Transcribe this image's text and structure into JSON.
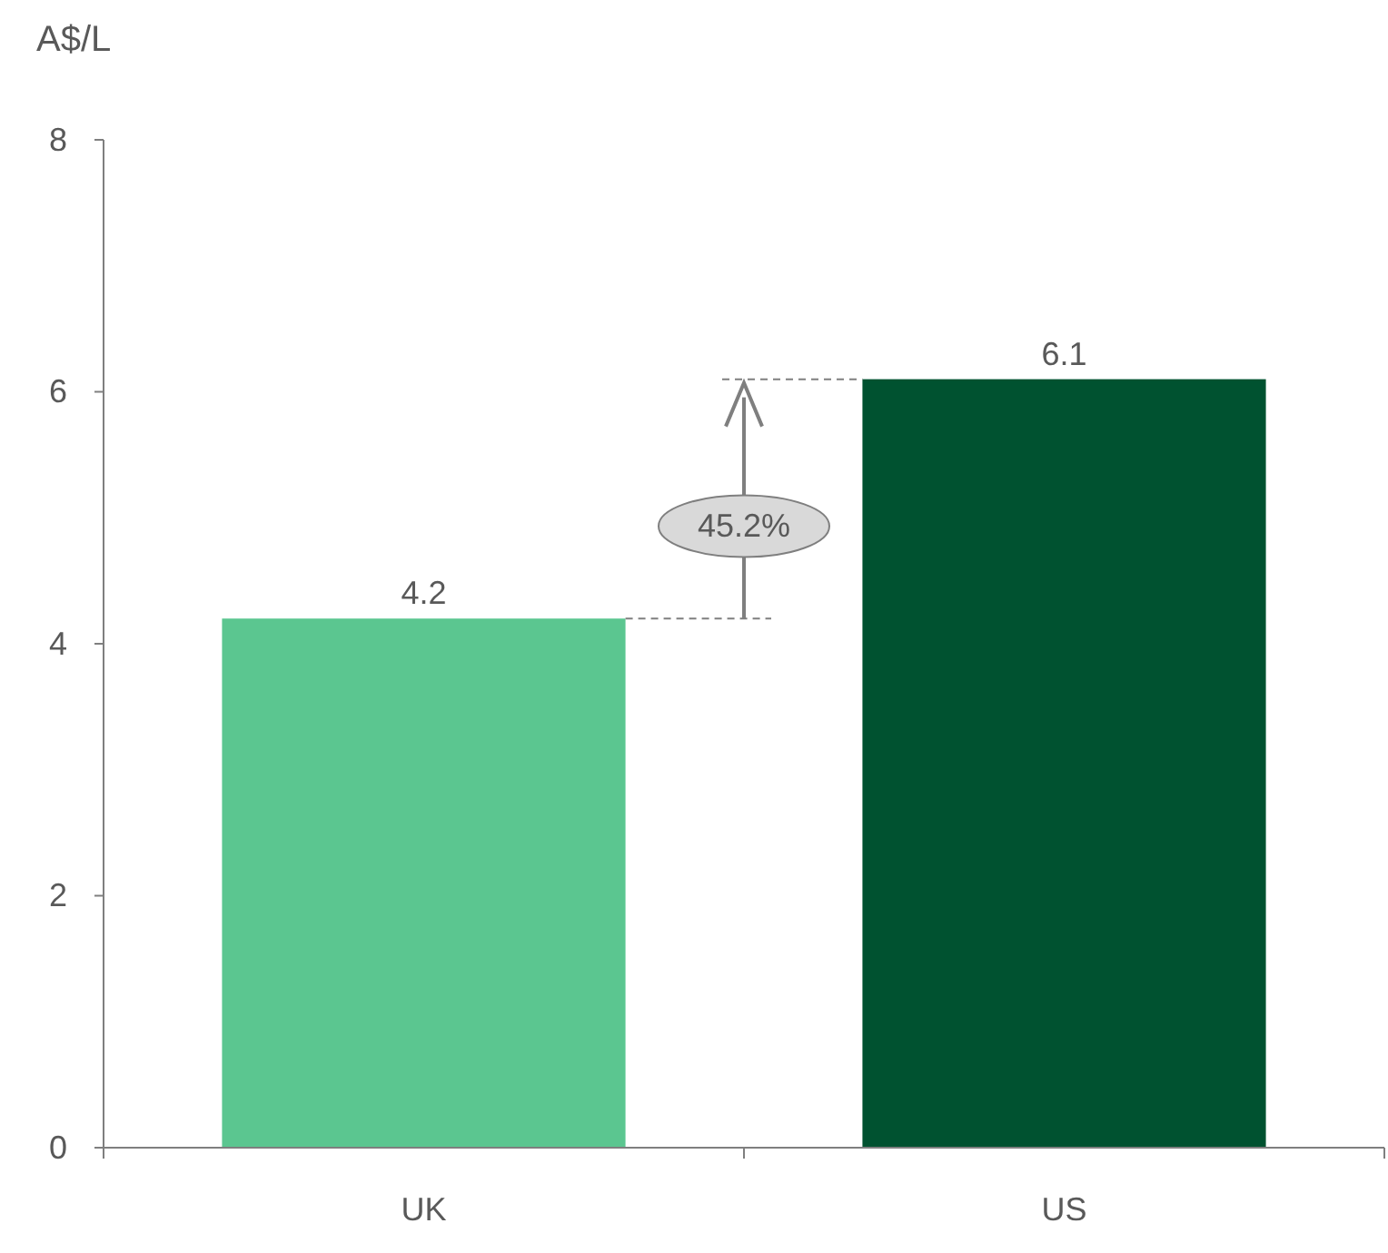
{
  "chart_data": {
    "type": "bar",
    "ylabel": "A$/L",
    "categories": [
      "UK",
      "US"
    ],
    "values": [
      4.2,
      6.1
    ],
    "colors": [
      "#5bc690",
      "#005230"
    ],
    "ylim": [
      0,
      8
    ],
    "yticks": [
      0,
      2,
      4,
      6,
      8
    ],
    "data_labels": true,
    "annotations": [
      "45.2%"
    ]
  }
}
